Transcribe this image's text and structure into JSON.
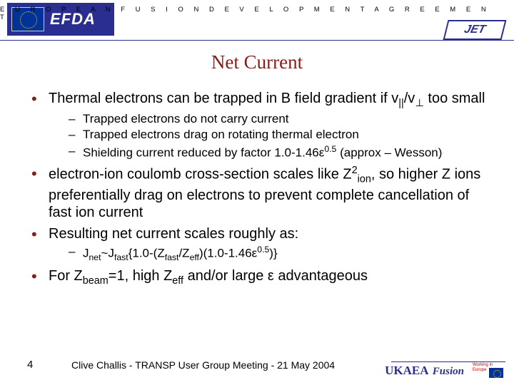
{
  "header": {
    "efda_text": "EFDA",
    "tagline": "E U R O P E A N     F U S I O N     D E V E L O P M E N T     A G R E E M E N T",
    "jet_label": "JET"
  },
  "title": "Net Current",
  "bullets": {
    "b1_pre": "Thermal electrons can be trapped in B field gradient if v",
    "b1_sub1": "||",
    "b1_mid": "/v",
    "b1_sub2": "⊥",
    "b1_post": " too small",
    "b1_sub_a": "Trapped electrons do not carry current",
    "b1_sub_b": "Trapped electrons drag on rotating thermal electron",
    "b1_sub_c_pre": "Shielding current reduced by factor 1.0-1.46ε",
    "b1_sub_c_sup": "0.5",
    "b1_sub_c_post": " (approx – Wesson)",
    "b2_pre": "electron-ion coulomb cross-section scales like Z",
    "b2_sup": "2",
    "b2_sub": "ion",
    "b2_post": ", so higher Z ions preferentially drag on electrons to prevent complete cancellation of fast ion current",
    "b3": "Resulting net current scales roughly as:",
    "b3_sub_pre": "J",
    "b3_sub_s1": "net",
    "b3_sub_mid1": "~J",
    "b3_sub_s2": "fast",
    "b3_sub_mid2": "{1.0-(Z",
    "b3_sub_s3": "fast",
    "b3_sub_mid3": "/Z",
    "b3_sub_s4": "eff",
    "b3_sub_mid4": ")(1.0-1.46ε",
    "b3_sub_sup": "0.5",
    "b3_sub_post": ")}",
    "b4_pre": "For Z",
    "b4_s1": "beam",
    "b4_mid1": "=1, high Z",
    "b4_s2": "eff",
    "b4_post": " and/or large ε advantageous"
  },
  "footer": {
    "page": "4",
    "text": "Clive Challis  -  TRANSP User Group Meeting  -  21 May 2004",
    "ukaea": "UKAEA",
    "fusion": "Fusion",
    "eu_mini": "Working in Europe"
  },
  "colors": {
    "accent_red": "#8b1a1a",
    "accent_blue": "#2a2e8f",
    "text": "#000000",
    "background": "#ffffff"
  }
}
